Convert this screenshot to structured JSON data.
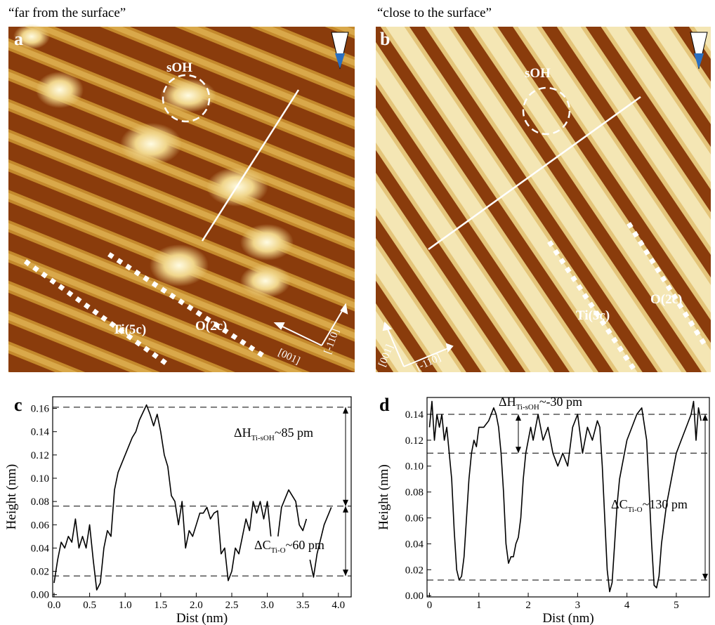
{
  "images": [
    {
      "label": "a",
      "caption": "“far from the surface”",
      "labels": [
        "sOH",
        "Ti(5c)",
        "O(2c)",
        "[001]",
        "[-110]"
      ]
    },
    {
      "label": "b",
      "caption": "“close to the surface”",
      "labels": [
        "sOH",
        "Ti(5c)",
        "O(2c)",
        "[001]",
        "[-110]"
      ]
    }
  ],
  "chart_data": [
    {
      "type": "line",
      "panel_label": "c",
      "x_label": "Dist (nm)",
      "y_label": "Height (nm)",
      "xlim": [
        -0.02,
        4.18
      ],
      "ylim": [
        -0.002,
        0.17
      ],
      "xticks": [
        {
          "value": 0,
          "label": "0.0"
        },
        {
          "value": 0.5,
          "label": "0.5"
        },
        {
          "value": 1,
          "label": "1.0"
        },
        {
          "value": 1.5,
          "label": "1.5"
        },
        {
          "value": 2,
          "label": "2.0"
        },
        {
          "value": 2.5,
          "label": "2.5"
        },
        {
          "value": 3,
          "label": "3.0"
        },
        {
          "value": 3.5,
          "label": "3.5"
        },
        {
          "value": 4,
          "label": "4.0"
        }
      ],
      "yticks": [
        {
          "value": 0,
          "label": "0.00"
        },
        {
          "value": 0.02,
          "label": "0.02"
        },
        {
          "value": 0.04,
          "label": "0.04"
        },
        {
          "value": 0.06,
          "label": "0.06"
        },
        {
          "value": 0.08,
          "label": "0.08"
        },
        {
          "value": 0.1,
          "label": "0.10"
        },
        {
          "value": 0.12,
          "label": "0.12"
        },
        {
          "value": 0.14,
          "label": "0.14"
        },
        {
          "value": 0.16,
          "label": "0.16"
        }
      ],
      "reference_lines": [
        0.016,
        0.076,
        0.161
      ],
      "annotations": [
        {
          "prefix": "ΔH",
          "sub": "Ti-sOH",
          "suffix": "~85 pm"
        },
        {
          "prefix": "ΔC",
          "sub": "Ti-O",
          "suffix": "~60 pm"
        }
      ],
      "x": [
        0,
        0.05,
        0.1,
        0.15,
        0.2,
        0.25,
        0.3,
        0.35,
        0.4,
        0.45,
        0.5,
        0.55,
        0.6,
        0.65,
        0.7,
        0.75,
        0.8,
        0.85,
        0.9,
        1.0,
        1.1,
        1.15,
        1.2,
        1.3,
        1.35,
        1.4,
        1.45,
        1.5,
        1.55,
        1.6,
        1.65,
        1.7,
        1.75,
        1.8,
        1.85,
        1.9,
        1.95,
        2.0,
        2.05,
        2.1,
        2.15,
        2.2,
        2.25,
        2.3,
        2.35,
        2.4,
        2.45,
        2.5,
        2.55,
        2.6,
        2.65,
        2.7,
        2.75,
        2.8,
        2.85,
        2.9,
        2.95,
        3.0,
        3.05,
        3.1,
        3.15,
        3.2,
        3.3,
        3.4,
        3.45,
        3.5,
        3.55,
        3.57,
        3.6,
        3.65,
        3.7,
        3.8,
        3.9
      ],
      "series": [
        {
          "name": "profile",
          "color": "#000000",
          "values": [
            0.01,
            0.03,
            0.045,
            0.04,
            0.05,
            0.045,
            0.065,
            0.04,
            0.05,
            0.04,
            0.06,
            0.03,
            0.004,
            0.01,
            0.04,
            0.055,
            0.05,
            0.09,
            0.105,
            0.12,
            0.135,
            0.14,
            0.15,
            0.163,
            0.155,
            0.145,
            0.155,
            0.14,
            0.12,
            0.11,
            0.085,
            0.08,
            0.06,
            0.08,
            0.04,
            0.055,
            0.05,
            0.06,
            0.07,
            0.07,
            0.075,
            0.065,
            0.07,
            0.072,
            0.035,
            0.04,
            0.012,
            0.02,
            0.04,
            0.035,
            0.05,
            0.065,
            0.055,
            0.08,
            0.07,
            0.08,
            0.065,
            0.08,
            0.05,
            null,
            0.05,
            0.075,
            0.09,
            0.08,
            0.06,
            0.055,
            0.065,
            null,
            0.03,
            0.015,
            0.035,
            0.06,
            0.075
          ]
        }
      ]
    },
    {
      "type": "line",
      "panel_label": "d",
      "x_label": "Dist (nm)",
      "y_label": "Height (nm)",
      "xlim": [
        -0.05,
        5.67
      ],
      "ylim": [
        -0.001,
        0.153
      ],
      "xticks": [
        0,
        1,
        2,
        3,
        4,
        5
      ],
      "yticks": [
        {
          "value": 0,
          "label": "0.00"
        },
        {
          "value": 0.02,
          "label": "0.02"
        },
        {
          "value": 0.04,
          "label": "0.04"
        },
        {
          "value": 0.06,
          "label": "0.06"
        },
        {
          "value": 0.08,
          "label": "0.08"
        },
        {
          "value": 0.1,
          "label": "0.10"
        },
        {
          "value": 0.12,
          "label": "0.12"
        },
        {
          "value": 0.14,
          "label": "0.14"
        }
      ],
      "reference_lines": [
        0.012,
        0.11,
        0.14
      ],
      "annotations": [
        {
          "prefix": "ΔH",
          "sub": "Ti-sOH",
          "suffix": "~-30 pm"
        },
        {
          "prefix": "ΔC",
          "sub": "Ti-O",
          "suffix": "~130 pm"
        }
      ],
      "x": [
        0,
        0.05,
        0.1,
        0.15,
        0.2,
        0.25,
        0.3,
        0.35,
        0.4,
        0.45,
        0.5,
        0.55,
        0.6,
        0.65,
        0.7,
        0.75,
        0.8,
        0.85,
        0.9,
        0.95,
        1.0,
        1.1,
        1.2,
        1.3,
        1.35,
        1.4,
        1.45,
        1.5,
        1.55,
        1.6,
        1.65,
        1.7,
        1.75,
        1.8,
        1.85,
        1.9,
        1.95,
        2.0,
        2.05,
        2.1,
        2.2,
        2.3,
        2.4,
        2.5,
        2.6,
        2.7,
        2.8,
        2.9,
        3.0,
        3.1,
        3.2,
        3.3,
        3.4,
        3.45,
        3.5,
        3.55,
        3.6,
        3.65,
        3.7,
        3.75,
        3.8,
        3.85,
        3.9,
        4.0,
        4.1,
        4.2,
        4.3,
        4.4,
        4.45,
        4.5,
        4.55,
        4.6,
        4.65,
        4.7,
        4.8,
        4.9,
        5.0,
        5.1,
        5.2,
        5.3,
        5.35,
        5.4,
        5.45,
        5.5
      ],
      "series": [
        {
          "name": "profile",
          "color": "#000000",
          "values": [
            0.13,
            0.15,
            0.12,
            0.14,
            0.13,
            0.14,
            0.12,
            0.13,
            0.11,
            0.09,
            0.05,
            0.02,
            0.012,
            0.015,
            0.03,
            0.06,
            0.09,
            0.11,
            0.12,
            0.115,
            0.13,
            0.13,
            0.135,
            0.145,
            0.14,
            0.13,
            0.11,
            0.08,
            0.04,
            0.025,
            0.03,
            0.03,
            0.04,
            0.045,
            0.06,
            0.09,
            0.11,
            0.12,
            0.13,
            0.12,
            0.14,
            0.12,
            0.13,
            0.11,
            0.1,
            0.11,
            0.1,
            0.13,
            0.14,
            0.11,
            0.13,
            0.12,
            0.135,
            0.13,
            0.1,
            0.06,
            0.02,
            0.003,
            0.01,
            0.04,
            0.07,
            0.09,
            0.1,
            0.12,
            0.13,
            0.14,
            0.145,
            0.12,
            0.08,
            0.04,
            0.008,
            0.006,
            0.015,
            0.04,
            0.07,
            0.09,
            0.11,
            0.12,
            0.13,
            0.14,
            0.15,
            0.12,
            0.145,
            0.135
          ]
        }
      ]
    }
  ]
}
